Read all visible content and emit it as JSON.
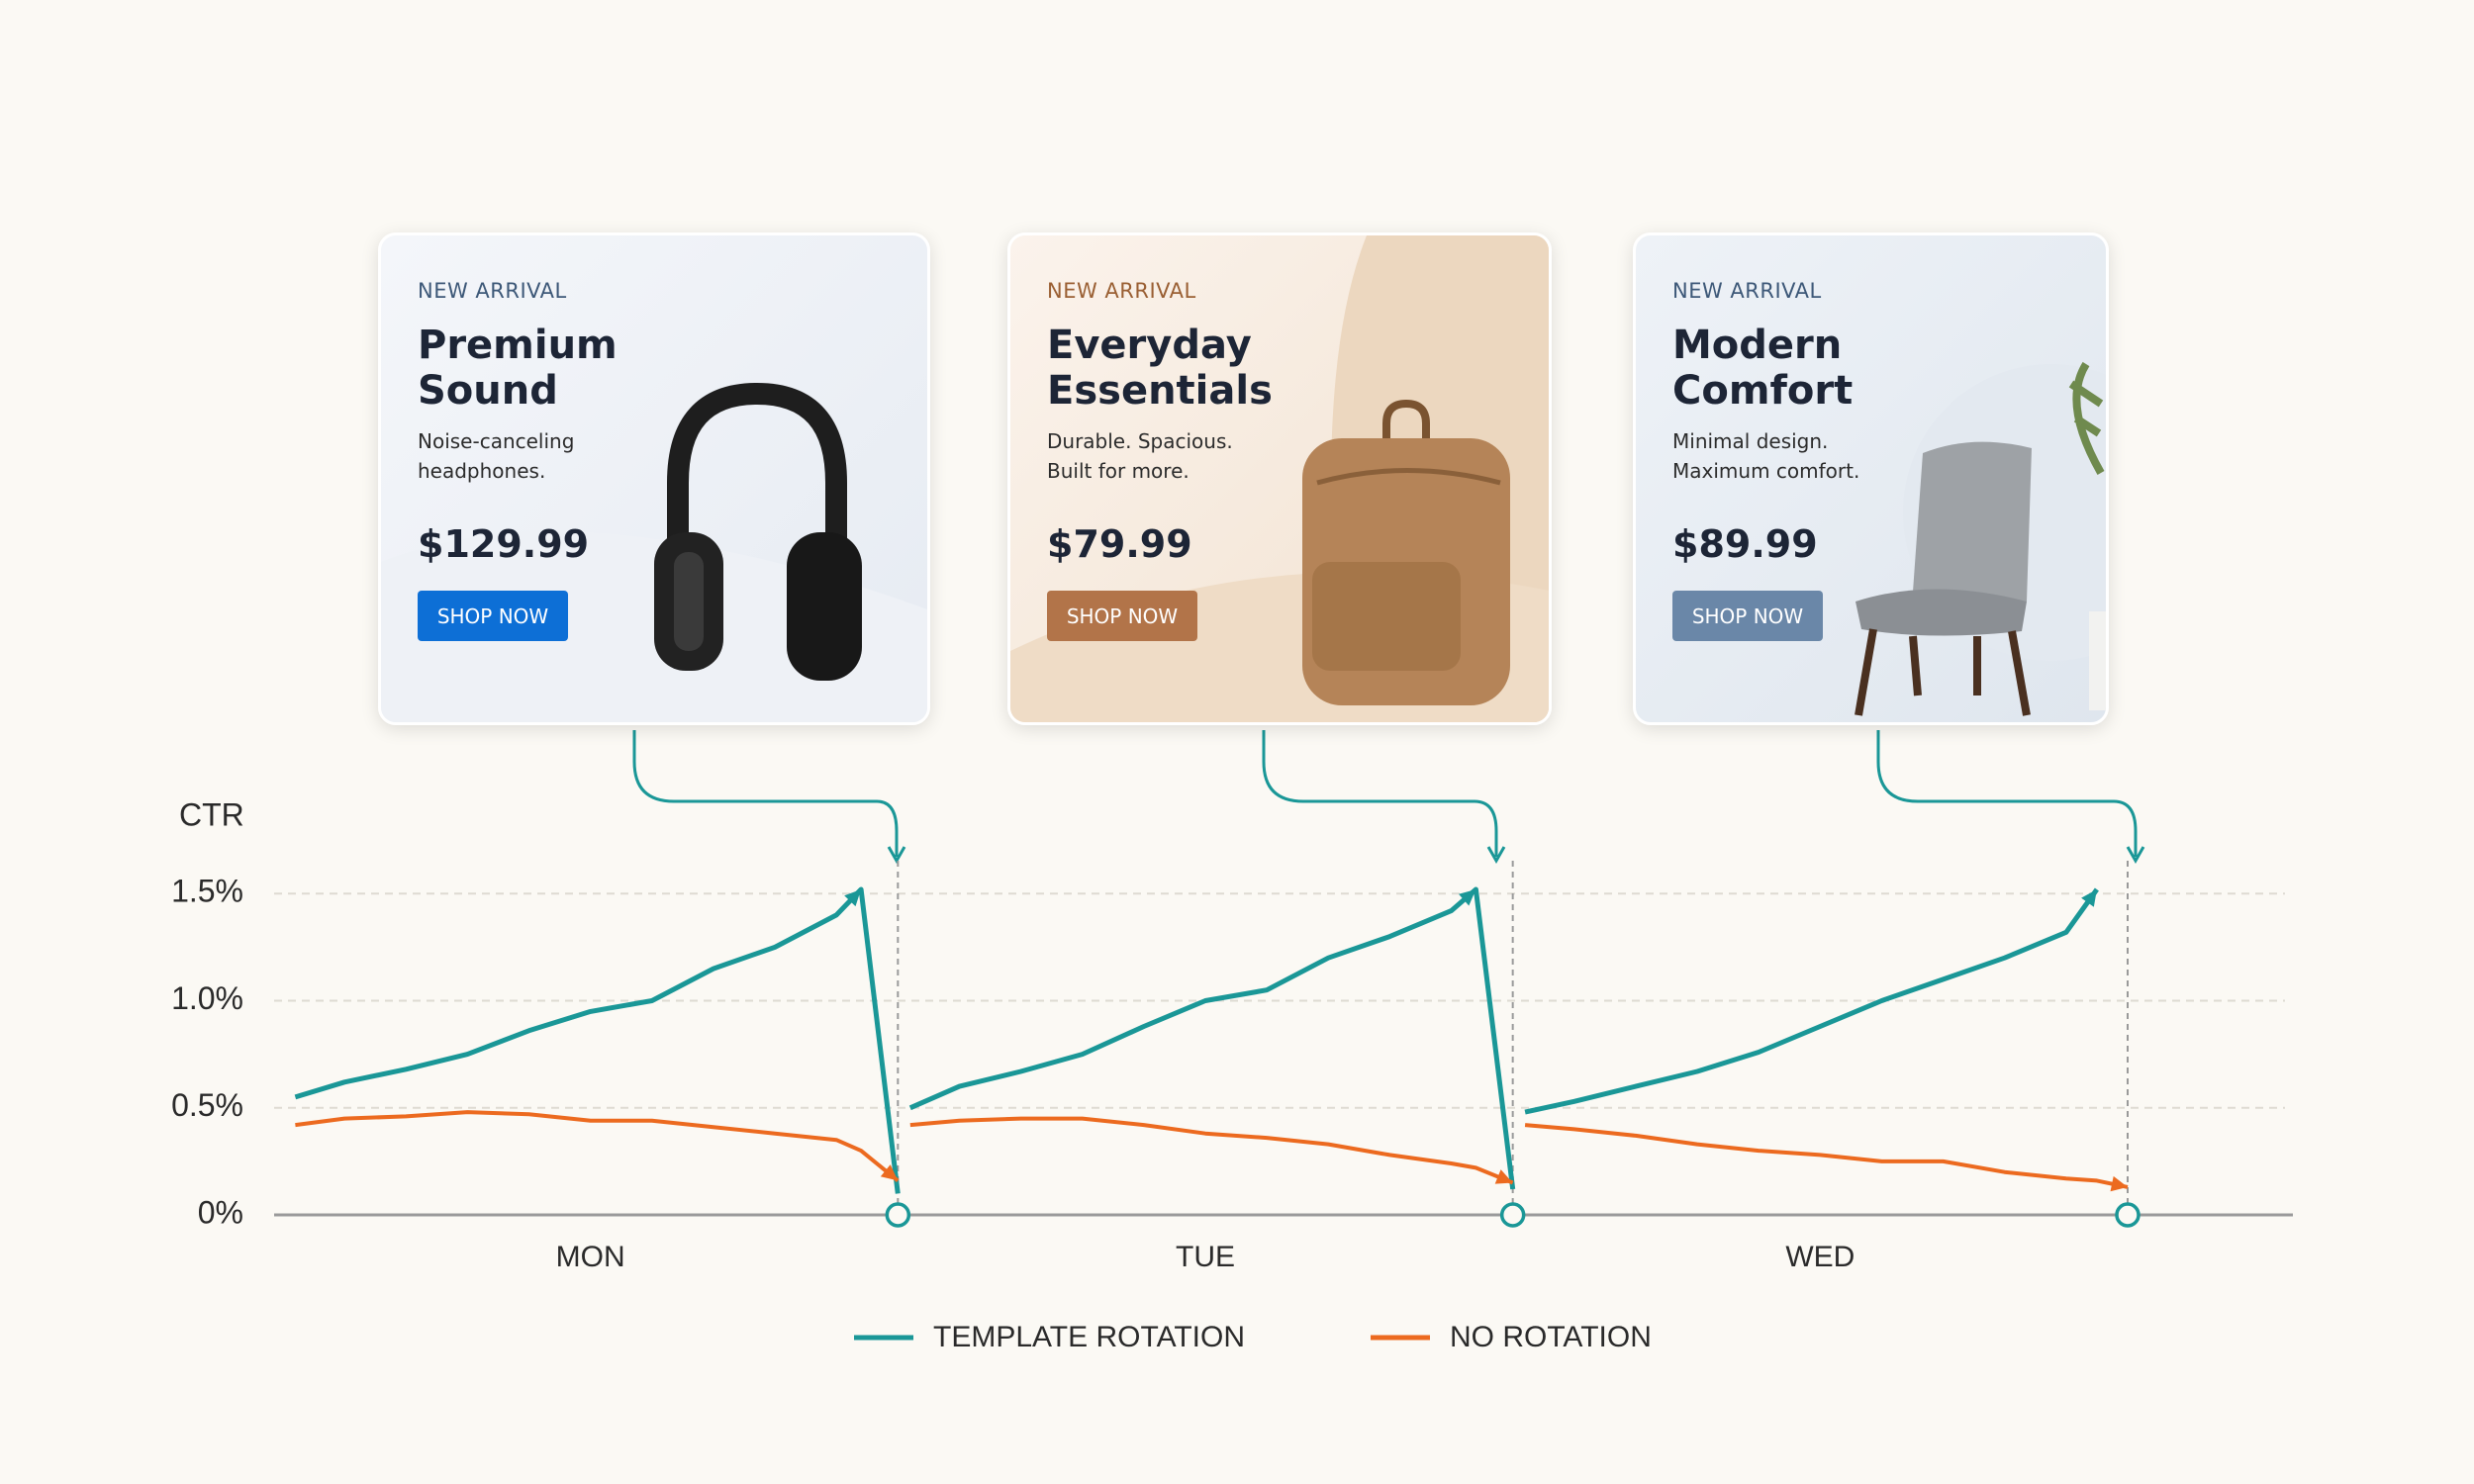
{
  "cards": [
    {
      "eyebrow": "NEW ARRIVAL",
      "title_lines": [
        "Premium",
        "Sound"
      ],
      "description_lines": [
        "Noise-canceling",
        "headphones."
      ],
      "price": "$129.99",
      "button": "SHOP NOW"
    },
    {
      "eyebrow": "NEW ARRIVAL",
      "title_lines": [
        "Everyday",
        "Essentials"
      ],
      "description_lines": [
        "Durable. Spacious.",
        "Built for more."
      ],
      "price": "$79.99",
      "button": "SHOP NOW"
    },
    {
      "eyebrow": "NEW ARRIVAL",
      "title_lines": [
        "Modern",
        "Comfort"
      ],
      "description_lines": [
        "Minimal design.",
        "Maximum comfort."
      ],
      "price": "$89.99",
      "button": "SHOP NOW"
    }
  ],
  "chart_data": {
    "type": "line",
    "y_label": "CTR",
    "categories": [
      "MON",
      "TUE",
      "WED"
    ],
    "x": [
      0.02,
      0.1,
      0.2,
      0.3,
      0.4,
      0.5,
      0.6,
      0.7,
      0.8,
      0.9,
      0.94,
      1.0,
      null,
      1.02,
      1.1,
      1.2,
      1.3,
      1.4,
      1.5,
      1.6,
      1.7,
      1.8,
      1.9,
      1.94,
      2.0,
      null,
      2.02,
      2.1,
      2.2,
      2.3,
      2.4,
      2.5,
      2.6,
      2.7,
      2.8,
      2.9,
      2.95,
      3.0
    ],
    "series": [
      {
        "name": "TEMPLATE ROTATION",
        "color": "#1a9797",
        "values": [
          0.55,
          0.62,
          0.68,
          0.75,
          0.86,
          0.95,
          1.0,
          1.15,
          1.25,
          1.4,
          1.52,
          0.1,
          null,
          0.5,
          0.6,
          0.67,
          0.75,
          0.88,
          1.0,
          1.05,
          1.2,
          1.3,
          1.42,
          1.52,
          0.12,
          null,
          0.48,
          0.53,
          0.6,
          0.67,
          0.76,
          0.88,
          1.0,
          1.1,
          1.2,
          1.32,
          1.52,
          null
        ]
      },
      {
        "name": "NO ROTATION",
        "color": "#ec6a1f",
        "values": [
          0.42,
          0.45,
          0.46,
          0.48,
          0.47,
          0.44,
          0.44,
          0.41,
          0.38,
          0.35,
          0.3,
          0.16,
          null,
          0.42,
          0.44,
          0.45,
          0.45,
          0.42,
          0.38,
          0.36,
          0.33,
          0.28,
          0.24,
          0.22,
          0.15,
          null,
          0.42,
          0.4,
          0.37,
          0.33,
          0.3,
          0.28,
          0.25,
          0.25,
          0.2,
          0.17,
          0.16,
          0.13
        ]
      }
    ],
    "xlim": [
      0,
      3
    ],
    "ylim": [
      0,
      1.7
    ],
    "yticks": [
      {
        "value": 0,
        "label": "0%"
      },
      {
        "value": 0.5,
        "label": "0.5%"
      },
      {
        "value": 1,
        "label": "1.0%"
      },
      {
        "value": 1.5,
        "label": "1.5%"
      }
    ],
    "grid": true
  }
}
